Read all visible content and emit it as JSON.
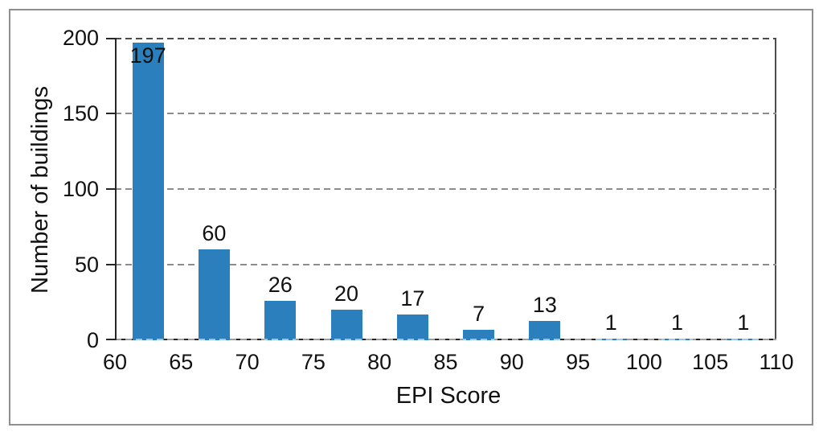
{
  "chart_data": {
    "type": "bar",
    "subtype": "histogram",
    "title": "",
    "xlabel": "EPI Score",
    "ylabel": "Number of buildings",
    "xlim": [
      60,
      110
    ],
    "ylim": [
      0,
      200
    ],
    "xtick_values": [
      60,
      65,
      70,
      75,
      80,
      85,
      90,
      95,
      100,
      105,
      110
    ],
    "xtick_labels": [
      "60",
      "65",
      "70",
      "75",
      "80",
      "85",
      "90",
      "95",
      "100",
      "105",
      "110"
    ],
    "ytick_values": [
      0,
      50,
      100,
      150,
      200
    ],
    "ytick_labels": [
      "0",
      "50",
      "100",
      "150",
      "200"
    ],
    "grid": "horizontal-dashed",
    "legend": "none",
    "bins": [
      {
        "range": [
          60,
          65
        ],
        "value": 197,
        "label": "197",
        "label_placement": "inside"
      },
      {
        "range": [
          65,
          70
        ],
        "value": 60,
        "label": "60",
        "label_placement": "above"
      },
      {
        "range": [
          70,
          75
        ],
        "value": 26,
        "label": "26",
        "label_placement": "above"
      },
      {
        "range": [
          75,
          80
        ],
        "value": 20,
        "label": "20",
        "label_placement": "above"
      },
      {
        "range": [
          80,
          85
        ],
        "value": 17,
        "label": "17",
        "label_placement": "above"
      },
      {
        "range": [
          85,
          90
        ],
        "value": 7,
        "label": "7",
        "label_placement": "above"
      },
      {
        "range": [
          90,
          95
        ],
        "value": 13,
        "label": "13",
        "label_placement": "above"
      },
      {
        "range": [
          95,
          100
        ],
        "value": 1,
        "label": "1",
        "label_placement": "above"
      },
      {
        "range": [
          100,
          105
        ],
        "value": 1,
        "label": "1",
        "label_placement": "above"
      },
      {
        "range": [
          105,
          110
        ],
        "value": 1,
        "label": "1",
        "label_placement": "above"
      }
    ],
    "colors": {
      "bar": "#2b7fbc",
      "axis": "#262626",
      "gridline": "#8c8c8c",
      "top_gridline": "#4a4a4a",
      "outer_border": "#8e8e8e",
      "text": "#111111",
      "background": "#ffffff"
    }
  }
}
